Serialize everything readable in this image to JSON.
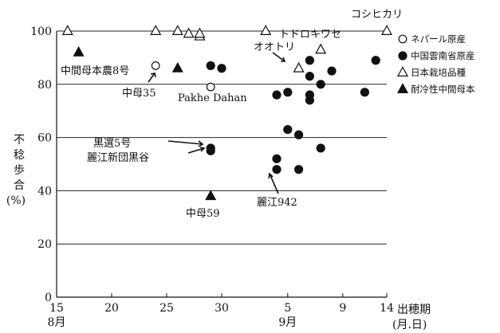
{
  "chart_data": {
    "type": "scatter",
    "ylim": [
      0,
      100
    ],
    "y_ticks": [
      0,
      20,
      40,
      60,
      80,
      100
    ],
    "grid": "horizontal",
    "legend_position": "right",
    "ylabel_lines": [
      "不",
      "稔",
      "歩",
      "合",
      "(%)"
    ],
    "xlabel": "出穂期",
    "xlabel_unit": "(月.日)",
    "x_ticks": [
      {
        "day": 15,
        "label": "15"
      },
      {
        "day": 20,
        "label": "20"
      },
      {
        "day": 25,
        "label": "25"
      },
      {
        "day": 30,
        "label": "30"
      },
      {
        "day": 36,
        "label": "5"
      },
      {
        "day": 41,
        "label": "9"
      },
      {
        "day": 45,
        "label": "14"
      }
    ],
    "month_labels": [
      {
        "day": 15,
        "label": "8月"
      },
      {
        "day": 36,
        "label": "9月"
      }
    ],
    "series": [
      {
        "name": "ネパール原産",
        "marker": "open-circle",
        "points": [
          {
            "day": 24,
            "y": 87
          },
          {
            "day": 29,
            "y": 79
          }
        ]
      },
      {
        "name": "中国雲南省原産",
        "marker": "filled-circle",
        "points": [
          {
            "day": 29,
            "y": 87
          },
          {
            "day": 30,
            "y": 86
          },
          {
            "day": 35,
            "y": 76
          },
          {
            "day": 36,
            "y": 77
          },
          {
            "day": 38,
            "y": 89
          },
          {
            "day": 38,
            "y": 83
          },
          {
            "day": 39,
            "y": 80
          },
          {
            "day": 40,
            "y": 85
          },
          {
            "day": 38,
            "y": 76
          },
          {
            "day": 38,
            "y": 74
          },
          {
            "day": 43,
            "y": 77
          },
          {
            "day": 44,
            "y": 89
          },
          {
            "day": 29,
            "y": 56
          },
          {
            "day": 29,
            "y": 55
          },
          {
            "day": 36,
            "y": 63
          },
          {
            "day": 37,
            "y": 61
          },
          {
            "day": 39,
            "y": 56
          },
          {
            "day": 35,
            "y": 52
          },
          {
            "day": 35,
            "y": 48
          },
          {
            "day": 37,
            "y": 48
          }
        ]
      },
      {
        "name": "日本栽培品種",
        "marker": "open-triangle",
        "points": [
          {
            "day": 16,
            "y": 100
          },
          {
            "day": 24,
            "y": 100
          },
          {
            "day": 26,
            "y": 100
          },
          {
            "day": 27,
            "y": 99
          },
          {
            "day": 28,
            "y": 98
          },
          {
            "day": 28,
            "y": 99
          },
          {
            "day": 34,
            "y": 100
          },
          {
            "day": 37,
            "y": 86
          },
          {
            "day": 39,
            "y": 93
          },
          {
            "day": 45,
            "y": 100
          }
        ]
      },
      {
        "name": "耐冷性中間母本",
        "marker": "filled-triangle",
        "points": [
          {
            "day": 17,
            "y": 92
          },
          {
            "day": 26,
            "y": 86
          },
          {
            "day": 29,
            "y": 38
          }
        ]
      }
    ],
    "annotations": [
      {
        "text": "コシヒカリ"
      },
      {
        "text": "トドロキワセ"
      },
      {
        "text": "オオトリ"
      },
      {
        "text": "中間母本農8号"
      },
      {
        "text": "中母35"
      },
      {
        "text": "Pakhe Dahan"
      },
      {
        "text": "黒選5号"
      },
      {
        "text": "麗江新団黒谷"
      },
      {
        "text": "麗江942"
      },
      {
        "text": "中母59"
      }
    ]
  }
}
